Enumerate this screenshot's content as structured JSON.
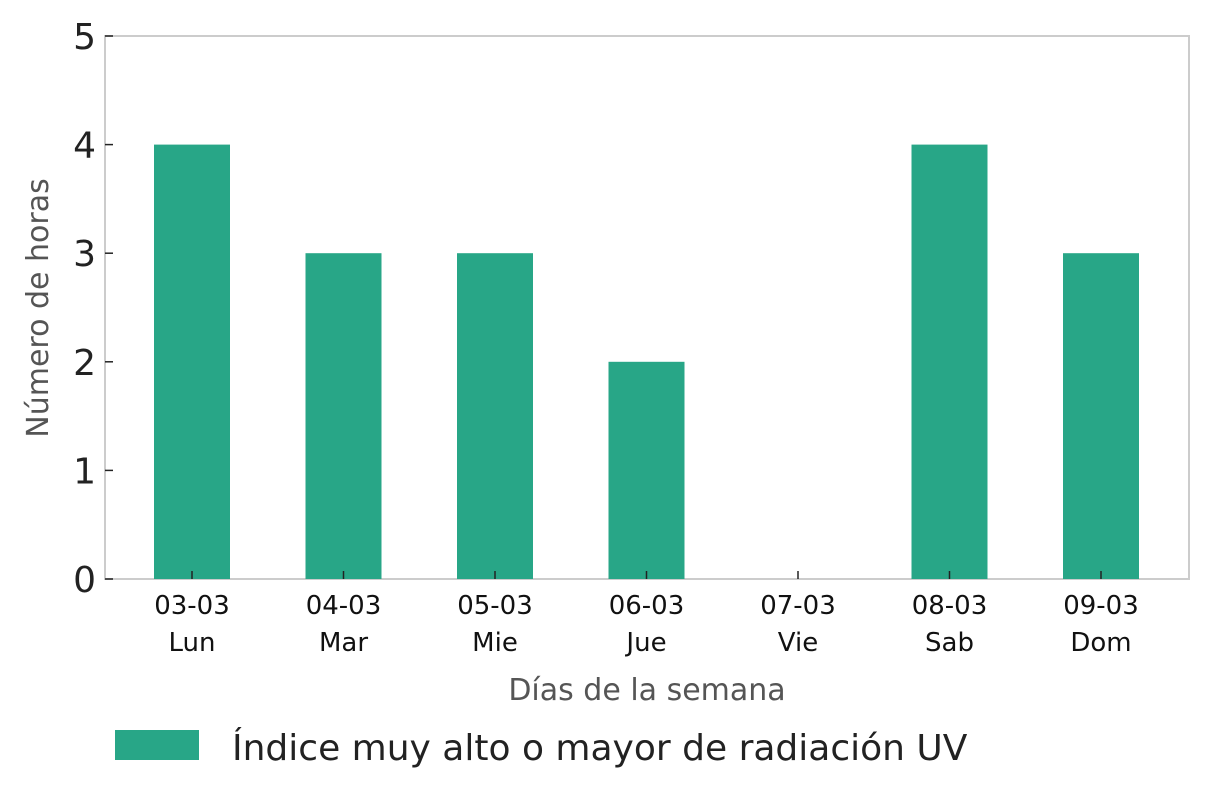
{
  "chart_data": {
    "type": "bar",
    "categories": [
      [
        "03-03",
        "Lun"
      ],
      [
        "04-03",
        "Mar"
      ],
      [
        "05-03",
        "Mie"
      ],
      [
        "06-03",
        "Jue"
      ],
      [
        "07-03",
        "Vie"
      ],
      [
        "08-03",
        "Sab"
      ],
      [
        "09-03",
        "Dom"
      ]
    ],
    "series": [
      {
        "name": "Índice muy alto o mayor de radiación UV",
        "values": [
          4,
          3,
          3,
          2,
          0,
          4,
          3
        ],
        "color": "#28a687"
      }
    ],
    "xlabel": "Días de la semana",
    "ylabel": "Número de horas",
    "ylim": [
      0,
      5
    ],
    "yticks": [
      "0",
      "1",
      "2",
      "3",
      "4",
      "5"
    ],
    "grid": false,
    "legend_position": "bottom"
  }
}
